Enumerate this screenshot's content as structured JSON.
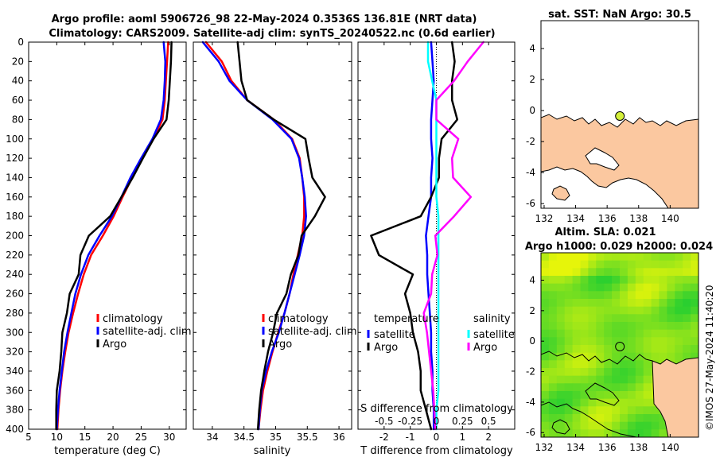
{
  "titles": {
    "line1": "Argo profile: aoml 5906726_98 22-May-2024 0.3536S 136.81E (NRT data)",
    "line2": "Climatology: CARS2009. Satellite-adj clim: synTS_20240522.nc (0.6d earlier)",
    "sst": "sat. SST: NaN Argo: 30.5",
    "sla1": "Altim. SLA: 0.021",
    "sla2": "Argo h1000: 0.029 h2000: 0.024",
    "credit": "©IMOS 27-May-2024 11:40:20"
  },
  "colors": {
    "climatology": "#ff0000",
    "satellite": "#0000ff",
    "argo": "#000000",
    "salinity_satellite": "#00ffff",
    "salinity_argo": "#ff00ff",
    "land": "#fbc8a0",
    "marker": "#d4f03a"
  },
  "chart_data": [
    {
      "type": "line",
      "id": "temperature",
      "xlabel": "temperature (deg C)",
      "ylabel": "",
      "xlim": [
        5,
        33
      ],
      "ylim": [
        400,
        0
      ],
      "xticks": [
        "5",
        "10",
        "15",
        "20",
        "25",
        "30"
      ],
      "yticks": [
        "0",
        "20",
        "40",
        "60",
        "80",
        "100",
        "120",
        "140",
        "160",
        "180",
        "200",
        "220",
        "240",
        "260",
        "280",
        "300",
        "320",
        "340",
        "360",
        "380",
        "400"
      ],
      "legend": [
        "climatology",
        "satellite-adj. clim",
        "Argo"
      ],
      "depth": [
        0,
        20,
        40,
        60,
        80,
        100,
        120,
        140,
        160,
        180,
        200,
        220,
        240,
        260,
        280,
        300,
        320,
        340,
        360,
        380,
        400
      ],
      "series": [
        {
          "name": "climatology",
          "x": [
            29.8,
            29.6,
            29.4,
            29.2,
            28.8,
            27.2,
            25.2,
            23.4,
            21.7,
            20.1,
            18.2,
            16.1,
            14.8,
            13.8,
            12.9,
            12.1,
            11.5,
            11.0,
            10.6,
            10.3,
            10.1
          ]
        },
        {
          "name": "satellite-adj. clim",
          "x": [
            29.0,
            29.3,
            29.2,
            29.0,
            28.5,
            27.0,
            25.0,
            23.1,
            21.5,
            19.8,
            17.6,
            15.6,
            14.3,
            13.3,
            12.6,
            11.9,
            11.3,
            10.9,
            10.5,
            10.2,
            10.0
          ]
        },
        {
          "name": "Argo",
          "x": [
            30.4,
            30.3,
            30.1,
            29.9,
            29.5,
            27.2,
            25.3,
            23.5,
            21.5,
            19.5,
            15.7,
            14.2,
            13.9,
            12.3,
            11.8,
            11.0,
            10.8,
            10.5,
            10.0,
            9.9,
            9.9
          ]
        }
      ]
    },
    {
      "type": "line",
      "id": "salinity",
      "xlabel": "salinity",
      "xlim": [
        33.7,
        36.2
      ],
      "ylim": [
        400,
        0
      ],
      "xticks": [
        "34",
        "34.5",
        "35",
        "35.5",
        "36"
      ],
      "legend": [
        "climatology",
        "satellite-adj. clim",
        "Argo"
      ],
      "depth": [
        0,
        20,
        40,
        60,
        80,
        100,
        120,
        140,
        160,
        180,
        200,
        220,
        240,
        260,
        280,
        300,
        320,
        340,
        360,
        380,
        400
      ],
      "series": [
        {
          "name": "climatology",
          "x": [
            33.9,
            34.15,
            34.3,
            34.55,
            34.97,
            35.26,
            35.38,
            35.42,
            35.45,
            35.45,
            35.42,
            35.35,
            35.28,
            35.22,
            35.14,
            35.04,
            34.95,
            34.87,
            34.8,
            34.76,
            34.73
          ]
        },
        {
          "name": "satellite-adj. clim",
          "x": [
            33.85,
            34.1,
            34.27,
            34.55,
            34.95,
            35.25,
            35.37,
            35.42,
            35.46,
            35.48,
            35.45,
            35.38,
            35.3,
            35.22,
            35.14,
            35.05,
            34.94,
            34.85,
            34.78,
            34.75,
            34.73
          ]
        },
        {
          "name": "Argo",
          "x": [
            34.4,
            34.43,
            34.46,
            34.55,
            34.97,
            35.47,
            35.52,
            35.58,
            35.78,
            35.62,
            35.41,
            35.36,
            35.24,
            35.17,
            35.02,
            34.96,
            34.88,
            34.82,
            34.77,
            34.74,
            34.72
          ]
        }
      ]
    },
    {
      "type": "line",
      "id": "difference",
      "xlabel": "T difference from climatology",
      "xlabel_top": "S difference from climatology",
      "xlim": [
        -3,
        3
      ],
      "ylim": [
        400,
        0
      ],
      "xticks": [
        "-2",
        "-1",
        "0",
        "1",
        "2"
      ],
      "sticks": [
        "-0.5",
        "-0.25",
        "0",
        "0.25",
        "0.5"
      ],
      "legend_t": {
        "title": "temperature",
        "items": [
          "satellite",
          "Argo"
        ]
      },
      "legend_s": {
        "title": "salinity",
        "items": [
          "satellite",
          "Argo"
        ]
      },
      "depth": [
        0,
        20,
        40,
        60,
        80,
        100,
        120,
        140,
        160,
        180,
        200,
        220,
        240,
        260,
        280,
        300,
        320,
        340,
        360,
        380,
        400
      ],
      "series": [
        {
          "name": "temperature satellite",
          "x": [
            -0.2,
            -0.15,
            -0.1,
            -0.15,
            -0.2,
            -0.2,
            -0.15,
            -0.2,
            -0.2,
            -0.3,
            -0.4,
            -0.35,
            -0.35,
            -0.3,
            -0.25,
            -0.2,
            -0.2,
            -0.15,
            -0.15,
            -0.1,
            -0.1
          ]
        },
        {
          "name": "temperature Argo",
          "x": [
            0.6,
            0.7,
            0.6,
            0.6,
            0.8,
            0.2,
            0.1,
            0.1,
            -0.2,
            -0.6,
            -2.5,
            -2.2,
            -0.9,
            -1.2,
            -1.0,
            -0.9,
            -0.7,
            -0.6,
            -0.6,
            -0.4,
            -0.2
          ]
        },
        {
          "name": "salinity satellite",
          "x": [
            -0.08,
            -0.08,
            -0.04,
            0.0,
            0.0,
            0.0,
            0.0,
            0.0,
            0.0,
            0.02,
            0.02,
            0.02,
            0.02,
            0.02,
            0.02,
            0.02,
            0.02,
            0.02,
            0.02,
            0.0,
            0.0
          ]
        },
        {
          "name": "salinity Argo",
          "x": [
            0.45,
            0.3,
            0.17,
            0.0,
            0.0,
            0.21,
            0.15,
            0.16,
            0.33,
            0.17,
            -0.01,
            0.01,
            -0.04,
            -0.05,
            -0.12,
            -0.09,
            -0.07,
            -0.05,
            -0.03,
            -0.02,
            -0.01
          ]
        }
      ]
    },
    {
      "type": "scatter",
      "id": "sst-map",
      "title": "sat. SST: NaN Argo: 30.5",
      "xlim": [
        131.8,
        141.8
      ],
      "ylim": [
        -6.3,
        5.8
      ],
      "xticks": [
        "132",
        "134",
        "136",
        "138",
        "140"
      ],
      "yticks": [
        "4",
        "2",
        "0",
        "-2",
        "-4",
        "-6"
      ],
      "argo_position": {
        "lon": 136.81,
        "lat": -0.3536
      }
    },
    {
      "type": "heatmap",
      "id": "sla-map",
      "title": "Altim. SLA: 0.021",
      "subtitle": "Argo h1000: 0.029 h2000: 0.024",
      "xlim": [
        131.8,
        141.8
      ],
      "ylim": [
        -6.3,
        5.8
      ],
      "xticks": [
        "132",
        "134",
        "136",
        "138",
        "140"
      ],
      "yticks": [
        "4",
        "2",
        "0",
        "-2",
        "-4",
        "-6"
      ],
      "argo_position": {
        "lon": 136.81,
        "lat": -0.3536
      }
    }
  ]
}
